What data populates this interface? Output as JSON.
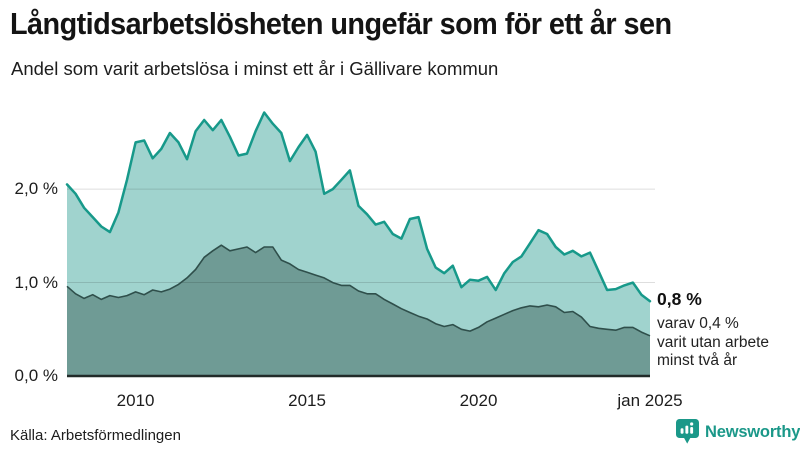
{
  "header": {
    "title": "Långtidsarbetslösheten ungefär som för ett år sen",
    "subtitle": "Andel som varit arbetslösa i minst ett år i Gällivare kommun"
  },
  "annotation": {
    "value_label": "0,8 %",
    "lines": [
      "varav 0,4 %",
      "varit utan arbete",
      "minst två år"
    ]
  },
  "footer": {
    "source": "Källa: Arbetsförmedlingen",
    "brand": "Newsworthy"
  },
  "colors": {
    "series1_line": "#17998a",
    "series1_fill": "#a0d3ce",
    "series2_line": "#2f4f4b",
    "series2_fill": "#6f9b95",
    "axis_line": "#212b29",
    "gridline": "rgba(0,0,0,0.13)",
    "text": "#1d1d1d",
    "brand_teal": "#1b9889"
  },
  "chart_data": {
    "type": "area",
    "title": "Långtidsarbetslösheten ungefär som för ett år sen",
    "subtitle": "Andel som varit arbetslösa i minst ett år i Gällivare kommun",
    "unit": "%",
    "x_start_year": 2008.0,
    "x_end_year": 2025.0,
    "x_step_years": 0.25,
    "x_tick_years": [
      2010,
      2015,
      2020,
      2025
    ],
    "x_tick_labels": [
      "2010",
      "2015",
      "2020",
      "jan 2025"
    ],
    "y_ticks": [
      0,
      1,
      2
    ],
    "y_tick_labels": [
      "0,0 %",
      "1,0 %",
      "2,0 %"
    ],
    "ylim": [
      0,
      2.9
    ],
    "grid": "horizontal",
    "legend": "none",
    "end_labels": {
      "series1": "0,8 %",
      "series2": "varav 0,4 % varit utan arbete minst två år"
    },
    "series": [
      {
        "name": "Arbetslösa minst ett år",
        "line_color": "#17998a",
        "fill_color": "#a0d3ce",
        "values": [
          2.05,
          1.95,
          1.8,
          1.7,
          1.6,
          1.54,
          1.75,
          2.1,
          2.5,
          2.52,
          2.33,
          2.43,
          2.6,
          2.5,
          2.32,
          2.62,
          2.74,
          2.63,
          2.74,
          2.56,
          2.36,
          2.38,
          2.62,
          2.82,
          2.7,
          2.6,
          2.3,
          2.45,
          2.58,
          2.4,
          1.95,
          2.0,
          2.1,
          2.2,
          1.82,
          1.73,
          1.62,
          1.65,
          1.52,
          1.47,
          1.68,
          1.7,
          1.36,
          1.16,
          1.1,
          1.18,
          0.95,
          1.03,
          1.02,
          1.06,
          0.92,
          1.1,
          1.22,
          1.28,
          1.42,
          1.56,
          1.52,
          1.38,
          1.3,
          1.34,
          1.28,
          1.32,
          1.12,
          0.92,
          0.93,
          0.97,
          1.0,
          0.87,
          0.8
        ]
      },
      {
        "name": "Arbetslösa minst två år",
        "line_color": "#2f4f4b",
        "fill_color": "#6f9b95",
        "values": [
          0.96,
          0.88,
          0.83,
          0.87,
          0.82,
          0.86,
          0.84,
          0.86,
          0.9,
          0.87,
          0.92,
          0.9,
          0.93,
          0.98,
          1.05,
          1.14,
          1.27,
          1.34,
          1.4,
          1.34,
          1.36,
          1.38,
          1.32,
          1.38,
          1.38,
          1.24,
          1.2,
          1.14,
          1.11,
          1.08,
          1.05,
          1.0,
          0.97,
          0.97,
          0.91,
          0.88,
          0.88,
          0.82,
          0.77,
          0.72,
          0.68,
          0.64,
          0.61,
          0.56,
          0.53,
          0.55,
          0.5,
          0.48,
          0.52,
          0.58,
          0.62,
          0.66,
          0.7,
          0.73,
          0.75,
          0.74,
          0.76,
          0.74,
          0.68,
          0.69,
          0.63,
          0.53,
          0.51,
          0.5,
          0.49,
          0.52,
          0.52,
          0.47,
          0.43
        ]
      }
    ]
  }
}
